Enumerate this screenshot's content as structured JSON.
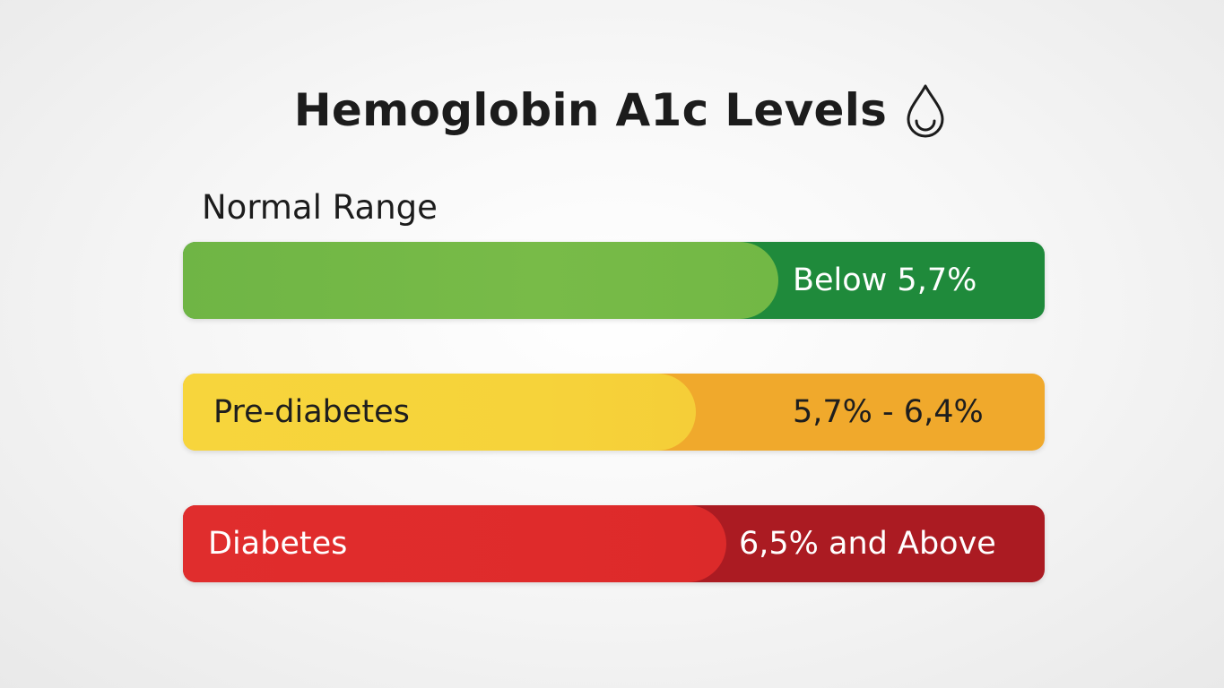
{
  "header": {
    "title": "Hemoglobin A1c Levels",
    "icon": "blood-drop-icon"
  },
  "section_label": "Normal Range",
  "levels": [
    {
      "name": "",
      "range": "Below 5,7%",
      "left_color": "#78bb48",
      "right_color": "#1f8a3b"
    },
    {
      "name": "Pre-diabetes",
      "range": "5,7% - 6,4%",
      "left_color": "#f6d33a",
      "right_color": "#f0a92c"
    },
    {
      "name": "Diabetes",
      "range": "6,5% and Above",
      "left_color": "#df2b2b",
      "right_color": "#ab1b22"
    }
  ]
}
